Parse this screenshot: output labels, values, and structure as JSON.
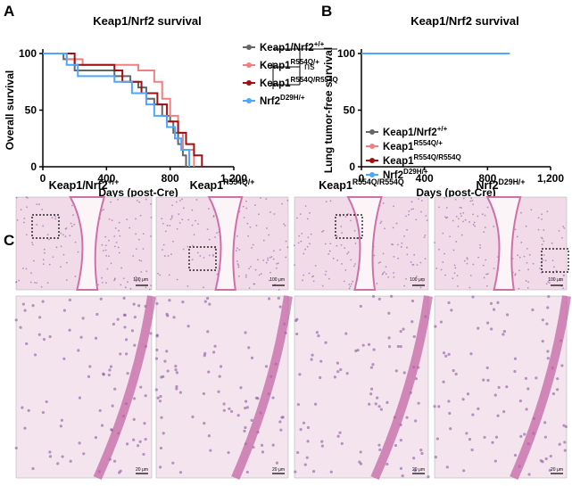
{
  "panel_labels": [
    "A",
    "B",
    "C"
  ],
  "chart_data": [
    {
      "type": "step",
      "title": "Keap1/Nrf2 survival",
      "x_label": "Days (post-Cre)",
      "y_label": "Overall survival",
      "xlim": [
        0,
        1200
      ],
      "xticks": [
        0,
        400,
        800,
        {
          "value": 1200,
          "label": "1,200"
        }
      ],
      "ylim": [
        0,
        100
      ],
      "yticks": [
        0,
        50,
        100
      ],
      "annotation": "ns",
      "series": [
        {
          "name": "Keap1/Nrf2+/+",
          "color": "#666666",
          "x": [
            0,
            130,
            200,
            450,
            550,
            600,
            650,
            700,
            750,
            800,
            820,
            850,
            880,
            900
          ],
          "values": [
            100,
            95,
            85,
            80,
            75,
            70,
            60,
            55,
            45,
            40,
            30,
            20,
            10,
            0
          ]
        },
        {
          "name": "Keap1R554Q/+",
          "color": "#f08080",
          "x": [
            0,
            150,
            250,
            600,
            700,
            750,
            800,
            850,
            880,
            950
          ],
          "values": [
            100,
            95,
            90,
            85,
            75,
            60,
            45,
            30,
            15,
            0
          ]
        },
        {
          "name": "Keap1R554Q/R554Q",
          "color": "#a01010",
          "x": [
            0,
            200,
            450,
            500,
            620,
            720,
            780,
            850,
            900,
            950,
            1000
          ],
          "values": [
            100,
            90,
            85,
            75,
            65,
            55,
            40,
            30,
            20,
            10,
            0
          ]
        },
        {
          "name": "Nrf2D29H/+",
          "color": "#4da6ff",
          "x": [
            0,
            150,
            220,
            450,
            560,
            650,
            700,
            780,
            830,
            870,
            920
          ],
          "values": [
            100,
            90,
            80,
            75,
            65,
            55,
            45,
            35,
            25,
            15,
            0
          ]
        }
      ]
    },
    {
      "type": "step",
      "title": "Keap1/Nrf2 survival",
      "x_label": "Days (post-Cre)",
      "y_label": "Lung tumor-free survival",
      "xlim": [
        0,
        1200
      ],
      "xticks": [
        0,
        400,
        800,
        {
          "value": 1200,
          "label": "1,200"
        }
      ],
      "ylim": [
        0,
        100
      ],
      "yticks": [
        0,
        50,
        100
      ],
      "series": [
        {
          "name": "Keap1/Nrf2+/+",
          "color": "#666666",
          "x": [
            0,
            940
          ],
          "values": [
            100,
            100
          ]
        },
        {
          "name": "Keap1R554Q/+",
          "color": "#f08080",
          "x": [
            0,
            940
          ],
          "values": [
            100,
            100
          ]
        },
        {
          "name": "Keap1R554Q/R554Q",
          "color": "#a01010",
          "x": [
            0,
            940
          ],
          "values": [
            100,
            100
          ]
        },
        {
          "name": "Nrf2D29H/+",
          "color": "#4da6ff",
          "x": [
            0,
            940
          ],
          "values": [
            100,
            100
          ]
        }
      ]
    }
  ],
  "histology": {
    "columns": [
      "Keap1/Nrf2+/+",
      "Keap1R554Q/+",
      "Keap1R554Q/R554Q",
      "Nrf2D29H/+"
    ],
    "scale_bars": [
      "100 μm",
      "20 μm"
    ]
  }
}
